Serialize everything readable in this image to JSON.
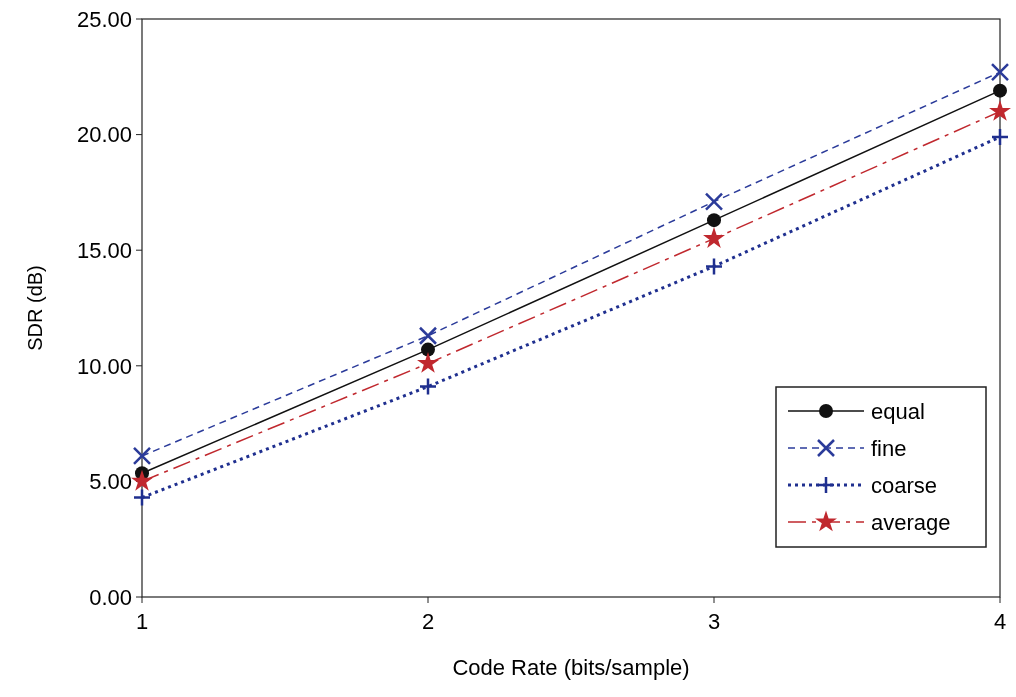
{
  "chart_data": {
    "type": "line",
    "xlabel": "Code Rate (bits/sample)",
    "ylabel": "SDR (dB)",
    "x": [
      1,
      2,
      3,
      4
    ],
    "xlim": [
      1,
      4
    ],
    "xticks": [
      1,
      2,
      3,
      4
    ],
    "ylim": [
      0,
      25
    ],
    "yticks": [
      {
        "value": 0,
        "label": "0.00"
      },
      {
        "value": 5,
        "label": "5.00"
      },
      {
        "value": 10,
        "label": "10.00"
      },
      {
        "value": 15,
        "label": "15.00"
      },
      {
        "value": 20,
        "label": "20.00"
      },
      {
        "value": 25,
        "label": "25.00"
      }
    ],
    "legend": "bottom right",
    "grid": false,
    "series": [
      {
        "name": "equal",
        "color": "#111111",
        "marker": "circle",
        "line_style": "solid",
        "values": [
          5.35,
          10.7,
          16.3,
          21.9
        ]
      },
      {
        "name": "fine",
        "color": "#2b3b9a",
        "marker": "cross",
        "line_style": "dashed",
        "values": [
          6.1,
          11.3,
          17.1,
          22.7
        ]
      },
      {
        "name": "coarse",
        "color": "#1f2f8f",
        "marker": "plus",
        "line_style": "dotted",
        "values": [
          4.3,
          9.1,
          14.3,
          19.9
        ]
      },
      {
        "name": "average",
        "color": "#c0282e",
        "marker": "star",
        "line_style": "dashdot",
        "values": [
          5.0,
          10.1,
          15.5,
          21.0
        ]
      }
    ]
  }
}
